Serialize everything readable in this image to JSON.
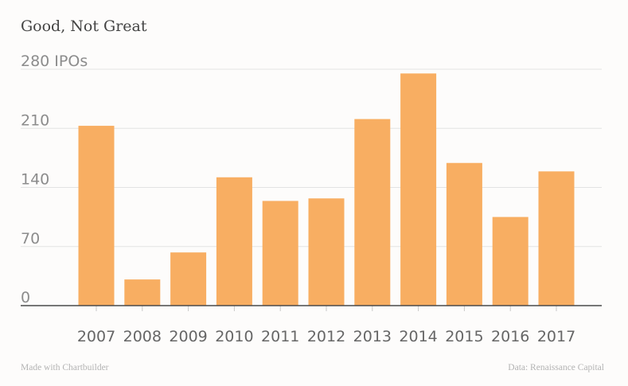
{
  "title": "Good, Not Great",
  "footer": {
    "made_with": "Made with Chartbuilder",
    "source": "Data: Renaissance Capital"
  },
  "colors": {
    "bar": "#f8ae62",
    "grid": "#e3e3e3",
    "axis": "#4a4a4a"
  },
  "chart_data": {
    "type": "bar",
    "title": "Good, Not Great",
    "categories": [
      "2007",
      "2008",
      "2009",
      "2010",
      "2011",
      "2012",
      "2013",
      "2014",
      "2015",
      "2016",
      "2017"
    ],
    "series": [
      {
        "name": "IPOs",
        "values": [
          213,
          31,
          63,
          152,
          124,
          127,
          221,
          275,
          169,
          105,
          159
        ]
      }
    ],
    "ylim": [
      0,
      280
    ],
    "yticks": [
      0,
      70,
      140,
      210,
      280
    ],
    "ytick_labels": [
      "0",
      "70",
      "140",
      "210",
      "280 IPOs"
    ],
    "xlabel": "",
    "ylabel": "",
    "grid": true,
    "legend": "none"
  }
}
